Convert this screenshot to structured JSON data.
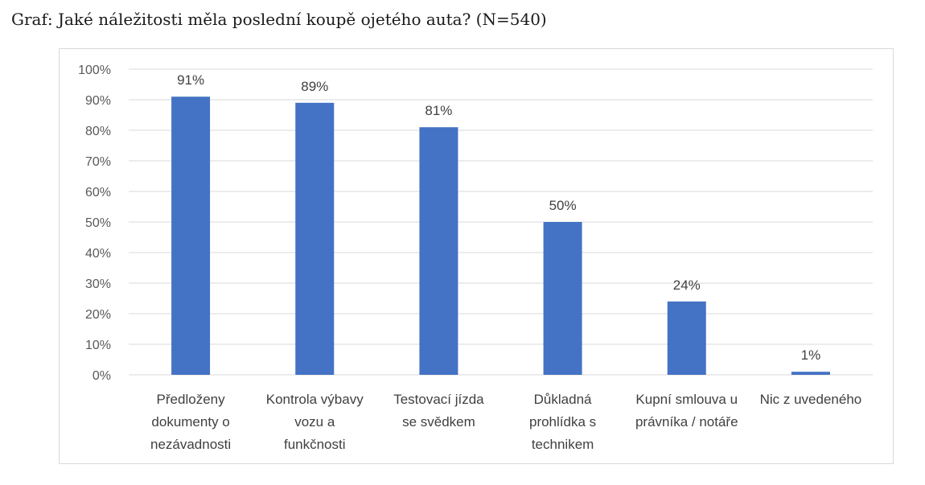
{
  "header": {
    "title": "Graf: Jaké náležitosti měla poslední koupě ojetého auta? (N=540)"
  },
  "chart_data": {
    "type": "bar",
    "title": "Graf: Jaké náležitosti měla poslední koupě ojetého auta? (N=540)",
    "categories": [
      [
        "Předloženy",
        "dokumenty o",
        "nezávadnosti"
      ],
      [
        "Kontrola výbavy",
        "vozu a",
        "funkčnosti"
      ],
      [
        "Testovací jízda",
        "se svědkem"
      ],
      [
        "Důkladná",
        "prohlídka s",
        "technikem"
      ],
      [
        "Kupní smlouva u",
        "právníka / notáře"
      ],
      [
        "Nic z uvedeného"
      ]
    ],
    "values": [
      91,
      89,
      81,
      50,
      24,
      1
    ],
    "data_labels": [
      "91%",
      "89%",
      "81%",
      "50%",
      "24%",
      "1%"
    ],
    "y_ticks": [
      "0%",
      "10%",
      "20%",
      "30%",
      "40%",
      "50%",
      "60%",
      "70%",
      "80%",
      "90%",
      "100%"
    ],
    "ylim": [
      0,
      100
    ],
    "xlabel": "",
    "ylabel": "",
    "grid": true,
    "bar_color": "#4472c4",
    "grid_color": "#d9d9d9"
  }
}
